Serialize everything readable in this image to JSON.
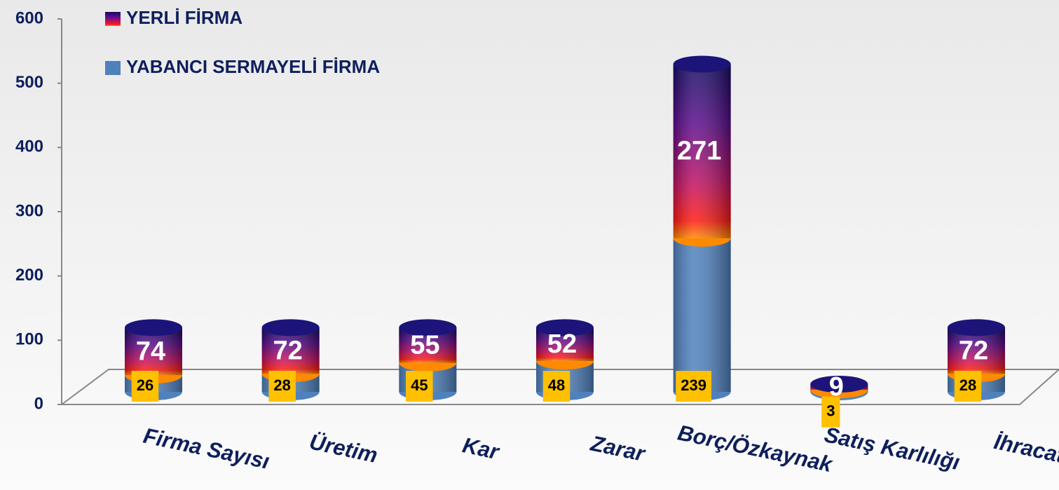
{
  "chart_data": {
    "type": "stacked_bar",
    "categories": [
      "Firma Sayısı",
      "Üretim",
      "Kar",
      "Zarar",
      "Borç/Özkaynak",
      "Satış Karlılığı",
      "İhracat"
    ],
    "series": [
      {
        "name": "YABANCI SERMAYELİ FİRMA",
        "color": "#4f81bd",
        "values": [
          26,
          28,
          45,
          48,
          239,
          3,
          28
        ]
      },
      {
        "name": "YERLİ FİRMA",
        "color": "#1c1478",
        "values": [
          74,
          72,
          55,
          52,
          271,
          9,
          72
        ]
      }
    ],
    "ylim": [
      0,
      600
    ],
    "yticks": [
      0,
      100,
      200,
      300,
      400,
      500,
      600
    ],
    "legend": "top-left"
  }
}
